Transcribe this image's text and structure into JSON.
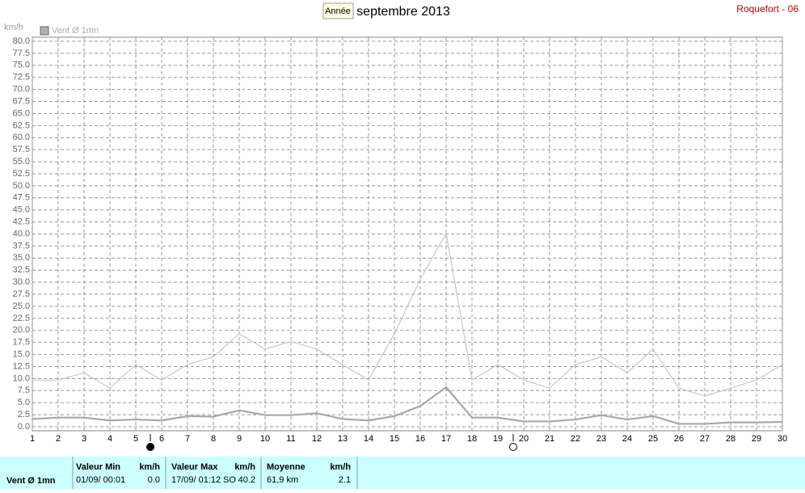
{
  "button": "Année",
  "station": "Roquefort - 06",
  "chart_data": {
    "type": "line",
    "title": "septembre 2013",
    "y_label": "km/h",
    "grid": true,
    "x": [
      1,
      2,
      3,
      4,
      5,
      6,
      7,
      8,
      9,
      10,
      11,
      12,
      13,
      14,
      15,
      16,
      17,
      18,
      19,
      20,
      21,
      22,
      23,
      24,
      25,
      26,
      27,
      28,
      29,
      30
    ],
    "xlim": [
      1,
      30
    ],
    "xticks": [
      1,
      2,
      3,
      4,
      5,
      6,
      7,
      8,
      9,
      10,
      11,
      12,
      13,
      14,
      15,
      16,
      17,
      18,
      19,
      20,
      21,
      22,
      23,
      24,
      25,
      26,
      27,
      28,
      29,
      30
    ],
    "ylim": [
      0,
      80
    ],
    "yticks": [
      {
        "value": 0,
        "label": "0.0"
      },
      2.5,
      {
        "value": 5,
        "label": "5.0"
      },
      7.5,
      {
        "value": 10,
        "label": "10.0"
      },
      12.5,
      {
        "value": 15,
        "label": "15.0"
      },
      17.5,
      {
        "value": 20,
        "label": "20.0"
      },
      22.5,
      {
        "value": 25,
        "label": "25.0"
      },
      27.5,
      {
        "value": 30,
        "label": "30.0"
      },
      32.5,
      {
        "value": 35,
        "label": "35.0"
      },
      37.5,
      {
        "value": 40,
        "label": "40.0"
      },
      42.5,
      {
        "value": 45,
        "label": "45.0"
      },
      47.5,
      {
        "value": 50,
        "label": "50.0"
      },
      52.5,
      {
        "value": 55,
        "label": "55.0"
      },
      57.5,
      {
        "value": 60,
        "label": "60.0"
      },
      62.5,
      {
        "value": 65,
        "label": "65.0"
      },
      67.5,
      {
        "value": 70,
        "label": "70.0"
      },
      72.5,
      {
        "value": 75,
        "label": "75.0"
      },
      77.5,
      {
        "value": 80,
        "label": "80.0"
      }
    ],
    "series": [
      {
        "name": "Vent Ø 1mn",
        "color": "#a8a8a8",
        "values": [
          1.6,
          1.9,
          1.9,
          1.3,
          1.5,
          1.3,
          2.2,
          2.1,
          3.4,
          2.4,
          2.4,
          2.8,
          1.6,
          1.3,
          2.2,
          4.3,
          8.2,
          1.9,
          1.9,
          1.1,
          1.1,
          1.5,
          2.4,
          1.5,
          2.2,
          0.6,
          0.6,
          0.9,
          0.9,
          1.0
        ]
      },
      {
        "color": "#c8c8c8",
        "values": [
          9.7,
          9.7,
          11.2,
          8.0,
          12.9,
          9.7,
          12.9,
          14.5,
          19.3,
          16.1,
          17.7,
          16.1,
          12.9,
          9.7,
          19.3,
          30.6,
          40.2,
          9.7,
          12.9,
          9.7,
          8.0,
          12.9,
          14.5,
          11.2,
          16.1,
          8.0,
          6.4,
          8.0,
          9.7,
          12.9
        ]
      }
    ]
  },
  "summary": {
    "label": "Vent Ø 1mn",
    "min": {
      "title": "Valeur Min",
      "unit": "km/h",
      "date": "01/09/ 00:01",
      "value": "0.0"
    },
    "max": {
      "title": "Valeur Max",
      "unit": "km/h",
      "date": "17/09/ 01:12",
      "dir": "SO",
      "value": "40.2"
    },
    "mean": {
      "title": "Moyenne",
      "unit": "km/h",
      "distance": "61,9 km",
      "value": "2.1"
    }
  }
}
